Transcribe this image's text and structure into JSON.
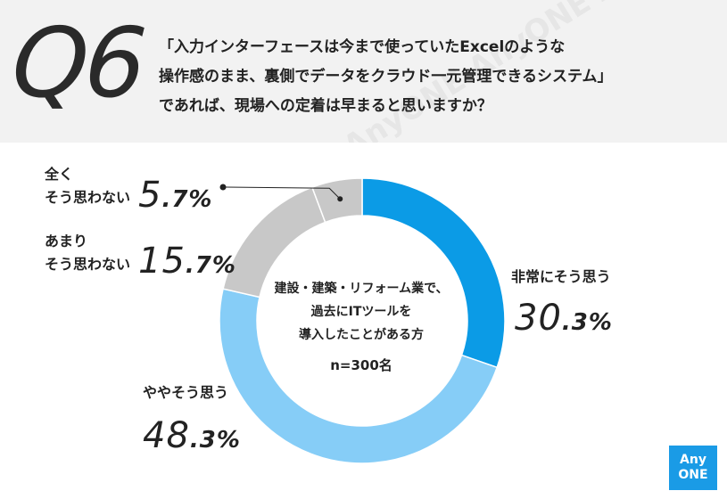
{
  "header": {
    "q_label": "Q6",
    "question_lines": [
      "「入力インターフェースは今まで使っていたExcelのような",
      "操作感のまま、裏側でデータをクラウド一元管理できるシステム」",
      "であれば、現場への定着は早まると思いますか？"
    ],
    "watermark": "AnyONE AnyONE AnyONE"
  },
  "chart_data": {
    "type": "pie",
    "style": "donut",
    "categories": [
      "非常にそう思う",
      "ややそう思う",
      "あまりそう思わない",
      "全くそう思わない"
    ],
    "values": [
      30.3,
      48.3,
      15.7,
      5.7
    ],
    "value_text": [
      {
        "num": "30",
        "dec": ".3%"
      },
      {
        "num": "48",
        "dec": ".3%"
      },
      {
        "num": "15",
        "dec": ".7%"
      },
      {
        "num": "5",
        "dec": ".7%"
      }
    ],
    "label_lines": [
      [
        "非常にそう思う"
      ],
      [
        "ややそう思う"
      ],
      [
        "あまり",
        "そう思わない"
      ],
      [
        "全く",
        "そう思わない"
      ]
    ],
    "colors": [
      "#0b9be6",
      "#86cdf7",
      "#c8c8c8",
      "#c8c8c8"
    ],
    "center_text": [
      "建設・建築・リフォーム業で、",
      "過去にITツールを",
      "導入したことがある方"
    ],
    "sample": "n=300名"
  },
  "logo": {
    "line1": "Any",
    "line2": "ONE",
    "color": "#1a9be6"
  }
}
